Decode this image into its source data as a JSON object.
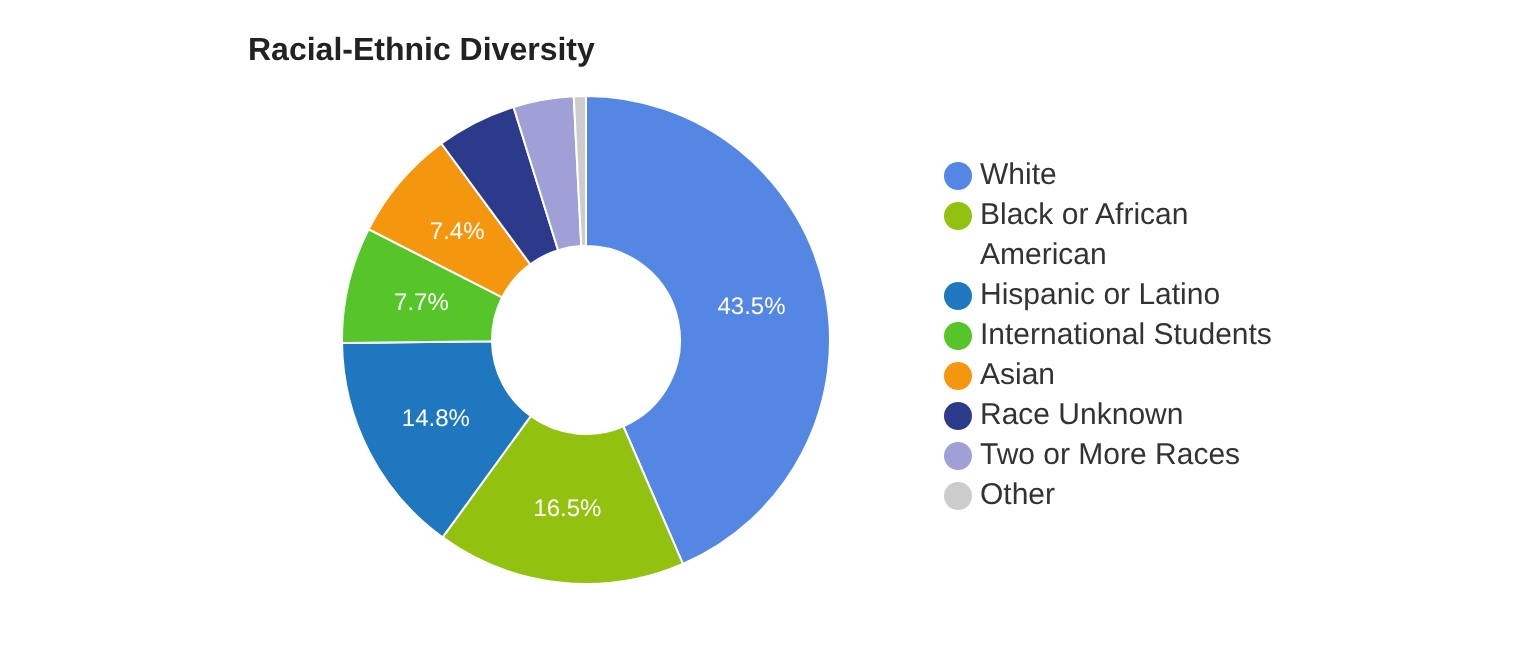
{
  "chart_data": {
    "type": "donut",
    "title": "Racial-Ethnic Diversity",
    "categories": [
      "White",
      "Black or African American",
      "Hispanic or Latino",
      "International Students",
      "Asian",
      "Race Unknown",
      "Two or More Races",
      "Other"
    ],
    "values": [
      43.5,
      16.5,
      14.8,
      7.7,
      7.4,
      5.3,
      4.0,
      0.8
    ],
    "colors": [
      "#5486e4",
      "#93c10f",
      "#1f77c0",
      "#56c52a",
      "#f5960f",
      "#2c3a8c",
      "#a09fd6",
      "#cccccc"
    ],
    "value_labels": [
      "43.5%",
      "16.5%",
      "14.8%",
      "7.7%",
      "7.4%",
      null,
      null,
      null
    ],
    "legend": "right"
  }
}
